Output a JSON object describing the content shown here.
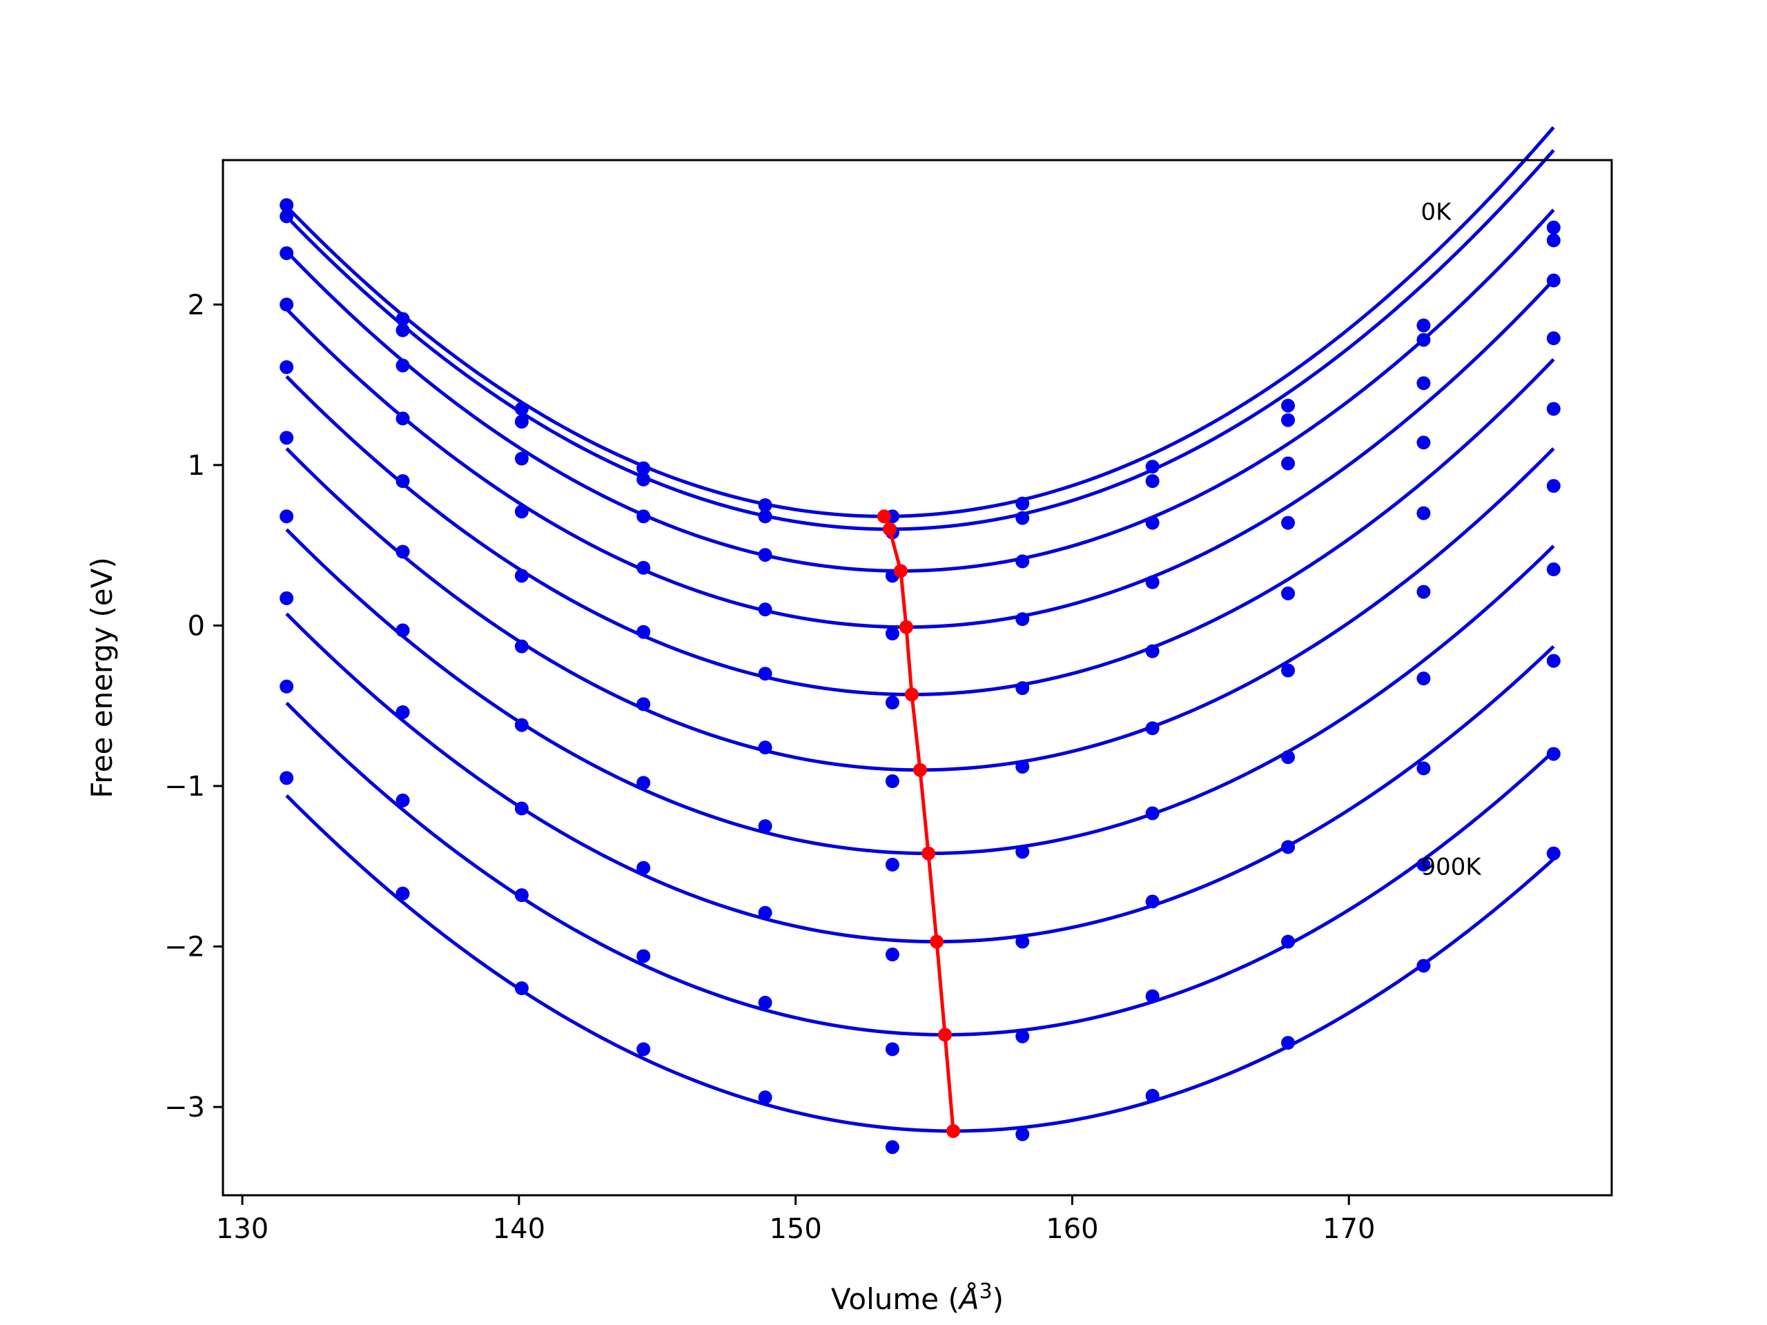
{
  "chart_data": {
    "type": "scatter",
    "xlabel": "Volume (",
    "xlabel_symbol": "Å",
    "xlabel_exp": "3",
    "xlabel_close": ")",
    "ylabel": "Free energy (eV)",
    "xlim": [
      129.3,
      179.5
    ],
    "ylim": [
      -3.55,
      2.9
    ],
    "x_ticks": [
      130,
      140,
      150,
      160,
      170
    ],
    "x_tick_labels": [
      "130",
      "140",
      "150",
      "160",
      "170"
    ],
    "y_ticks": [
      -3,
      -2,
      -1,
      0,
      1,
      2
    ],
    "y_tick_labels": [
      "−3",
      "−2",
      "−1",
      "0",
      "1",
      "2"
    ],
    "grid": false,
    "colors": {
      "points": "#0000ee",
      "fits": "#0000dd",
      "minima": "#ff0000"
    },
    "annotations": [
      {
        "text": "0K",
        "x": 172.6,
        "y": 2.58
      },
      {
        "text": "900K",
        "x": 172.6,
        "y": -1.5
      }
    ],
    "volumes": [
      131.6,
      135.8,
      140.1,
      144.5,
      148.9,
      153.5,
      158.2,
      162.9,
      167.8,
      172.7,
      177.4
    ],
    "series": [
      {
        "values": [
          2.62,
          1.91,
          1.35,
          0.98,
          0.75,
          0.68,
          0.76,
          0.99,
          1.37,
          1.87,
          2.48
        ]
      },
      {
        "values": [
          2.55,
          1.84,
          1.27,
          0.91,
          0.68,
          0.58,
          0.67,
          0.9,
          1.28,
          1.78,
          2.4
        ]
      },
      {
        "values": [
          2.32,
          1.62,
          1.04,
          0.68,
          0.44,
          0.31,
          0.4,
          0.64,
          1.01,
          1.51,
          2.15
        ]
      },
      {
        "values": [
          2.0,
          1.29,
          0.71,
          0.36,
          0.1,
          -0.05,
          0.04,
          0.27,
          0.64,
          1.14,
          1.79
        ]
      },
      {
        "values": [
          1.61,
          0.9,
          0.31,
          -0.04,
          -0.3,
          -0.48,
          -0.39,
          -0.16,
          0.2,
          0.7,
          1.35
        ]
      },
      {
        "values": [
          1.17,
          0.46,
          -0.13,
          -0.49,
          -0.76,
          -0.97,
          -0.88,
          -0.64,
          -0.28,
          0.21,
          0.87
        ]
      },
      {
        "values": [
          0.68,
          -0.03,
          -0.62,
          -0.98,
          -1.25,
          -1.49,
          -1.41,
          -1.17,
          -0.82,
          -0.33,
          0.35
        ]
      },
      {
        "values": [
          0.17,
          -0.54,
          -1.14,
          -1.51,
          -1.79,
          -2.05,
          -1.97,
          -1.72,
          -1.38,
          -0.89,
          -0.22
        ]
      },
      {
        "values": [
          -0.38,
          -1.09,
          -1.68,
          -2.06,
          -2.35,
          -2.64,
          -2.56,
          -2.31,
          -1.97,
          -1.49,
          -0.8
        ]
      },
      {
        "values": [
          -0.95,
          -1.67,
          -2.26,
          -2.64,
          -2.94,
          -3.25,
          -3.17,
          -2.93,
          -2.6,
          -2.12,
          -1.42
        ]
      }
    ],
    "fits": [
      {
        "min_v": 153.2,
        "min_f": 0.68,
        "a": 0.00414
      },
      {
        "min_v": 153.4,
        "min_f": 0.6,
        "a": 0.0041
      },
      {
        "min_v": 153.8,
        "min_f": 0.34,
        "a": 0.00404
      },
      {
        "min_v": 154.0,
        "min_f": -0.01,
        "a": 0.00395
      },
      {
        "min_v": 154.2,
        "min_f": -0.43,
        "a": 0.00388
      },
      {
        "min_v": 154.5,
        "min_f": -0.9,
        "a": 0.00382
      },
      {
        "min_v": 154.8,
        "min_f": -1.42,
        "a": 0.00375
      },
      {
        "min_v": 155.1,
        "min_f": -1.97,
        "a": 0.0037
      },
      {
        "min_v": 155.4,
        "min_f": -2.55,
        "a": 0.00365
      },
      {
        "min_v": 155.7,
        "min_f": -3.15,
        "a": 0.0036
      }
    ]
  }
}
